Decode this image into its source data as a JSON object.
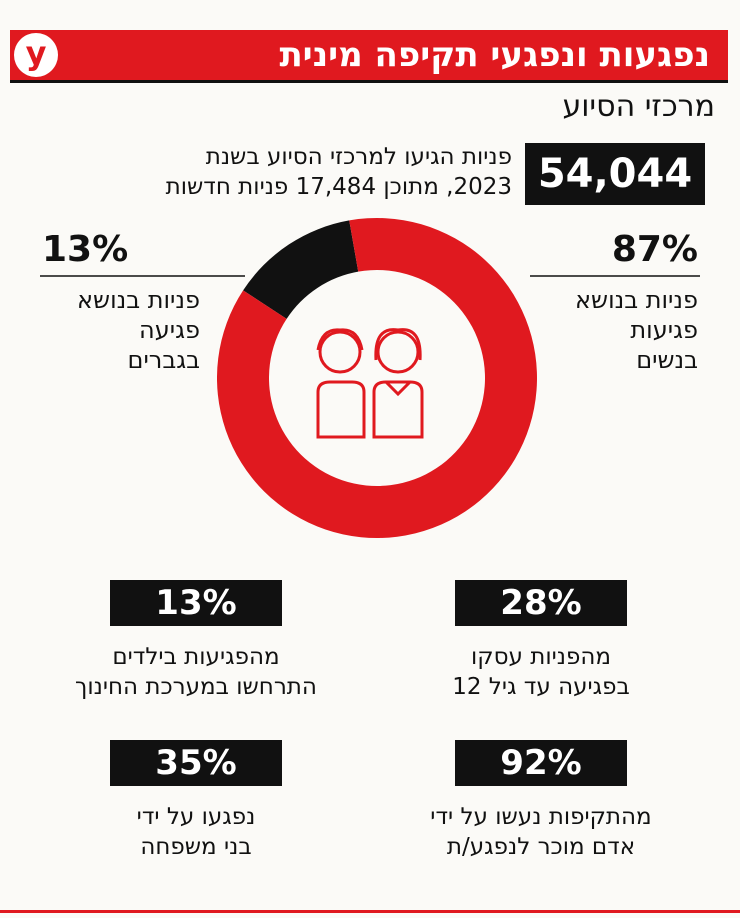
{
  "header": {
    "logo": "y",
    "title": "נפגעות ונפגעי תקיפה מינית",
    "subtitle": "מרכזי הסיוע"
  },
  "total": {
    "value": "54,044",
    "text": "פניות הגיעו למרכזי הסיוע בשנת\n2023, מתוכן 17,484 פניות חדשות"
  },
  "chart_data": {
    "type": "pie",
    "donut": true,
    "categories": [
      "פניות בנושא\nפגיעות\nבנשים",
      "פניות בנושא\nפגיעה\nבגברים"
    ],
    "values": [
      87,
      13
    ],
    "value_labels": [
      "87%",
      "13%"
    ],
    "colors": [
      "#e0191f",
      "#111111"
    ]
  },
  "stats": [
    {
      "value": "28%",
      "text": "מהפניות עסקו\nבפגיעה עד גיל 12"
    },
    {
      "value": "13%",
      "text": "מהפגיעות בילדים\nהתרחשו במערכת החינוך"
    },
    {
      "value": "92%",
      "text": "מהתקיפות נעשו על ידי\nאדם מוכר לנפגע/ת"
    },
    {
      "value": "35%",
      "text": "נפגעו על ידי\nבני משפחה"
    }
  ]
}
